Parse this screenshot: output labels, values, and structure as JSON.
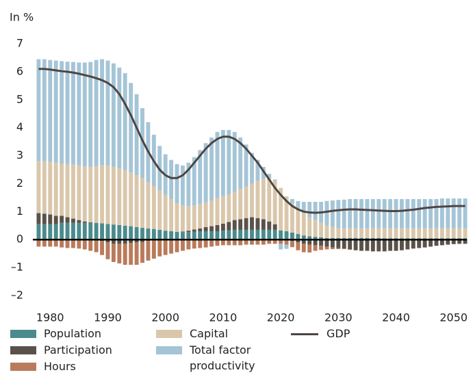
{
  "chart_data": {
    "type": "bar",
    "stacked": true,
    "y_label": "In %",
    "x": [
      1978,
      1979,
      1980,
      1981,
      1982,
      1983,
      1984,
      1985,
      1986,
      1987,
      1988,
      1989,
      1990,
      1991,
      1992,
      1993,
      1994,
      1995,
      1996,
      1997,
      1998,
      1999,
      2000,
      2001,
      2002,
      2003,
      2004,
      2005,
      2006,
      2007,
      2008,
      2009,
      2010,
      2011,
      2012,
      2013,
      2014,
      2015,
      2016,
      2017,
      2018,
      2019,
      2020,
      2021,
      2022,
      2023,
      2024,
      2025,
      2026,
      2027,
      2028,
      2029,
      2030,
      2031,
      2032,
      2033,
      2034,
      2035,
      2036,
      2037,
      2038,
      2039,
      2040,
      2041,
      2042,
      2043,
      2044,
      2045,
      2046,
      2047,
      2048,
      2049,
      2050,
      2051,
      2052
    ],
    "xlim": [
      1977,
      2053
    ],
    "xticks": [
      1980,
      1990,
      2000,
      2010,
      2020,
      2030,
      2040,
      2050
    ],
    "ylim": [
      -2,
      7
    ],
    "yticks": [
      {
        "value": -2,
        "label": "–2"
      },
      {
        "value": -1,
        "label": "–1"
      },
      0,
      1,
      2,
      3,
      4,
      5,
      6,
      7
    ],
    "series": [
      {
        "name": "Population",
        "color": "#4b8b8d",
        "values": [
          0.55,
          0.55,
          0.55,
          0.55,
          0.6,
          0.6,
          0.6,
          0.6,
          0.6,
          0.6,
          0.6,
          0.58,
          0.56,
          0.54,
          0.52,
          0.5,
          0.48,
          0.45,
          0.42,
          0.4,
          0.38,
          0.35,
          0.32,
          0.3,
          0.28,
          0.27,
          0.27,
          0.28,
          0.3,
          0.3,
          0.3,
          0.3,
          0.32,
          0.33,
          0.35,
          0.35,
          0.35,
          0.35,
          0.35,
          0.35,
          0.35,
          0.35,
          0.33,
          0.3,
          0.25,
          0.2,
          0.15,
          0.12,
          0.1,
          0.08,
          0.06,
          0.06,
          0.06,
          0.06,
          0.06,
          0.06,
          0.06,
          0.06,
          0.06,
          0.06,
          0.05,
          0.05,
          0.05,
          0.05,
          0.05,
          0.05,
          0.05,
          0.05,
          0.05,
          0.05,
          0.05,
          0.05,
          0.05,
          0.05,
          0.05
        ]
      },
      {
        "name": "Participation",
        "color": "#5a524a",
        "values": [
          0.4,
          0.38,
          0.35,
          0.3,
          0.25,
          0.2,
          0.15,
          0.1,
          0.05,
          0.02,
          0,
          -0.05,
          -0.1,
          -0.15,
          -0.15,
          -0.15,
          -0.12,
          -0.1,
          -0.08,
          -0.05,
          -0.03,
          0,
          0,
          0,
          0,
          0.02,
          0.05,
          0.08,
          0.1,
          0.15,
          0.18,
          0.22,
          0.25,
          0.3,
          0.35,
          0.38,
          0.42,
          0.45,
          0.42,
          0.38,
          0.3,
          0.2,
          0,
          0,
          -0.05,
          -0.1,
          -0.15,
          -0.18,
          -0.2,
          -0.22,
          -0.25,
          -0.28,
          -0.3,
          -0.32,
          -0.35,
          -0.38,
          -0.4,
          -0.4,
          -0.42,
          -0.42,
          -0.42,
          -0.4,
          -0.4,
          -0.38,
          -0.35,
          -0.32,
          -0.3,
          -0.28,
          -0.25,
          -0.22,
          -0.2,
          -0.18,
          -0.16,
          -0.15,
          -0.15
        ]
      },
      {
        "name": "Hours",
        "color": "#b97b5b",
        "values": [
          -0.25,
          -0.25,
          -0.25,
          -0.25,
          -0.28,
          -0.3,
          -0.3,
          -0.32,
          -0.35,
          -0.4,
          -0.45,
          -0.5,
          -0.6,
          -0.65,
          -0.7,
          -0.75,
          -0.78,
          -0.8,
          -0.75,
          -0.7,
          -0.65,
          -0.6,
          -0.55,
          -0.5,
          -0.45,
          -0.4,
          -0.35,
          -0.32,
          -0.3,
          -0.28,
          -0.25,
          -0.22,
          -0.2,
          -0.2,
          -0.2,
          -0.2,
          -0.18,
          -0.18,
          -0.18,
          -0.18,
          -0.15,
          -0.15,
          -0.15,
          -0.18,
          -0.22,
          -0.28,
          -0.3,
          -0.28,
          -0.2,
          -0.15,
          -0.1,
          -0.06,
          -0.04,
          -0.02,
          -0.01,
          0,
          0,
          0,
          0,
          0,
          0,
          0,
          0,
          0,
          0,
          0,
          0,
          0,
          0,
          0,
          0,
          0,
          0,
          0,
          0
        ]
      },
      {
        "name": "Capital",
        "color": "#dac7ab",
        "values": [
          1.85,
          1.87,
          1.88,
          1.9,
          1.87,
          1.9,
          1.93,
          1.95,
          1.97,
          1.98,
          2.02,
          2.07,
          2.09,
          2.06,
          2.03,
          2.0,
          1.92,
          1.85,
          1.78,
          1.65,
          1.52,
          1.4,
          1.28,
          1.15,
          1.02,
          0.93,
          0.88,
          0.86,
          0.87,
          0.88,
          0.92,
          0.96,
          0.98,
          0.99,
          1.0,
          1.07,
          1.13,
          1.2,
          1.33,
          1.45,
          1.55,
          1.55,
          1.52,
          1.25,
          1.05,
          0.9,
          0.8,
          0.68,
          0.6,
          0.52,
          0.44,
          0.39,
          0.36,
          0.34,
          0.34,
          0.34,
          0.34,
          0.34,
          0.34,
          0.34,
          0.35,
          0.35,
          0.35,
          0.35,
          0.35,
          0.35,
          0.35,
          0.35,
          0.35,
          0.35,
          0.35,
          0.35,
          0.35,
          0.35,
          0.35
        ]
      },
      {
        "name": "Total factor productivity",
        "color": "#a5c5d7",
        "values": [
          3.65,
          3.65,
          3.64,
          3.65,
          3.66,
          3.66,
          3.67,
          3.68,
          3.71,
          3.75,
          3.8,
          3.8,
          3.75,
          3.7,
          3.6,
          3.45,
          3.2,
          2.9,
          2.5,
          2.15,
          1.85,
          1.6,
          1.45,
          1.4,
          1.4,
          1.43,
          1.55,
          1.73,
          1.93,
          2.12,
          2.25,
          2.37,
          2.37,
          2.3,
          2.15,
          1.85,
          1.5,
          1.1,
          0.75,
          0.42,
          0.15,
          0.05,
          -0.2,
          -0.15,
          0.15,
          0.28,
          0.4,
          0.55,
          0.65,
          0.75,
          0.88,
          0.95,
          1.0,
          1.03,
          1.05,
          1.05,
          1.05,
          1.05,
          1.05,
          1.05,
          1.05,
          1.05,
          1.05,
          1.05,
          1.05,
          1.05,
          1.05,
          1.05,
          1.05,
          1.05,
          1.07,
          1.07,
          1.07,
          1.07,
          1.07
        ]
      },
      {
        "name": "GDP",
        "type": "line",
        "color": "#4d4541",
        "values": [
          6.1,
          6.1,
          6.08,
          6.05,
          6.02,
          6.0,
          5.97,
          5.93,
          5.88,
          5.83,
          5.77,
          5.7,
          5.6,
          5.45,
          5.2,
          4.85,
          4.45,
          4.0,
          3.55,
          3.15,
          2.8,
          2.5,
          2.3,
          2.2,
          2.2,
          2.3,
          2.5,
          2.75,
          3.0,
          3.25,
          3.45,
          3.6,
          3.68,
          3.68,
          3.6,
          3.45,
          3.25,
          3.0,
          2.75,
          2.45,
          2.15,
          1.85,
          1.6,
          1.38,
          1.2,
          1.08,
          1.0,
          0.97,
          0.96,
          0.97,
          1.0,
          1.03,
          1.05,
          1.07,
          1.08,
          1.08,
          1.07,
          1.06,
          1.05,
          1.04,
          1.03,
          1.02,
          1.02,
          1.03,
          1.05,
          1.07,
          1.1,
          1.13,
          1.15,
          1.17,
          1.18,
          1.19,
          1.2,
          1.2,
          1.2
        ]
      }
    ]
  }
}
